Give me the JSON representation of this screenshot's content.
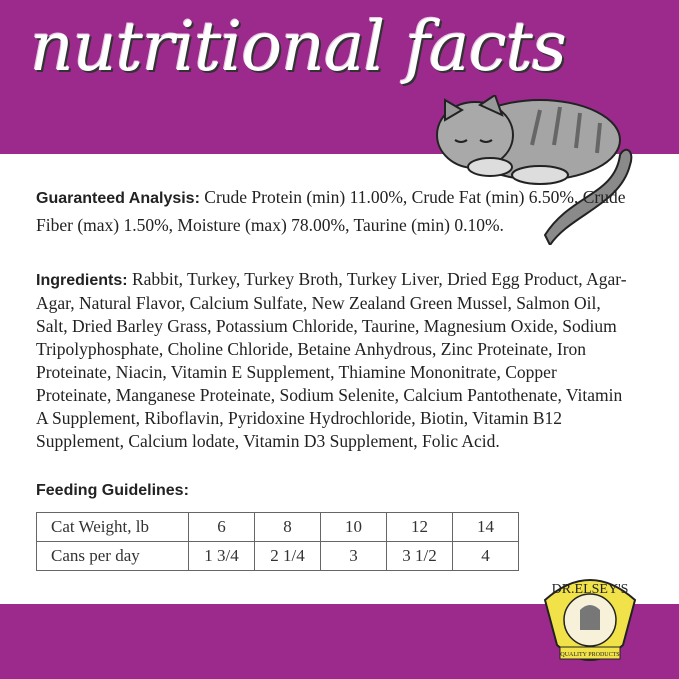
{
  "header": {
    "title": "nutritional facts"
  },
  "guaranteed": {
    "label": "Guaranteed Analysis:",
    "text": " Crude Protein (min) 11.00%, Crude Fat (min) 6.50%, Crude Fiber (max) 1.50%, Moisture (max) 78.00%, Taurine (min) 0.10%."
  },
  "ingredients": {
    "label": "Ingredients:",
    "text": " Rabbit, Turkey, Turkey Broth, Turkey Liver, Dried Egg Product, Agar-Agar, Natural Flavor, Calcium Sulfate, New Zealand Green Mussel, Salmon Oil, Salt, Dried Barley Grass, Potassium Chloride, Taurine, Magnesium Oxide, Sodium Tripolyphosphate, Choline Chloride, Betaine Anhydrous, Zinc Proteinate, Iron Proteinate, Niacin, Vitamin E Supplement, Thiamine Mononitrate, Copper Proteinate, Manganese Proteinate, Sodium Selenite, Calcium Pantothenate, Vitamin A Supplement, Riboflavin, Pyridoxine Hydrochloride, Biotin, Vitamin B12 Supplement, Calcium lodate, Vitamin D3 Supplement, Folic Acid."
  },
  "feeding": {
    "label": "Feeding Guidelines:",
    "rows": [
      [
        "Cat Weight, lb",
        "6",
        "8",
        "10",
        "12",
        "14"
      ],
      [
        "Cans per day",
        "1 3/4",
        "2 1/4",
        "3",
        "3 1/2",
        "4"
      ]
    ]
  },
  "logo": {
    "text": "DR.ELSEY'S",
    "tagline": "QUALITY PRODUCTS FOR CATS"
  },
  "colors": {
    "brand": "#9b2a8c"
  }
}
